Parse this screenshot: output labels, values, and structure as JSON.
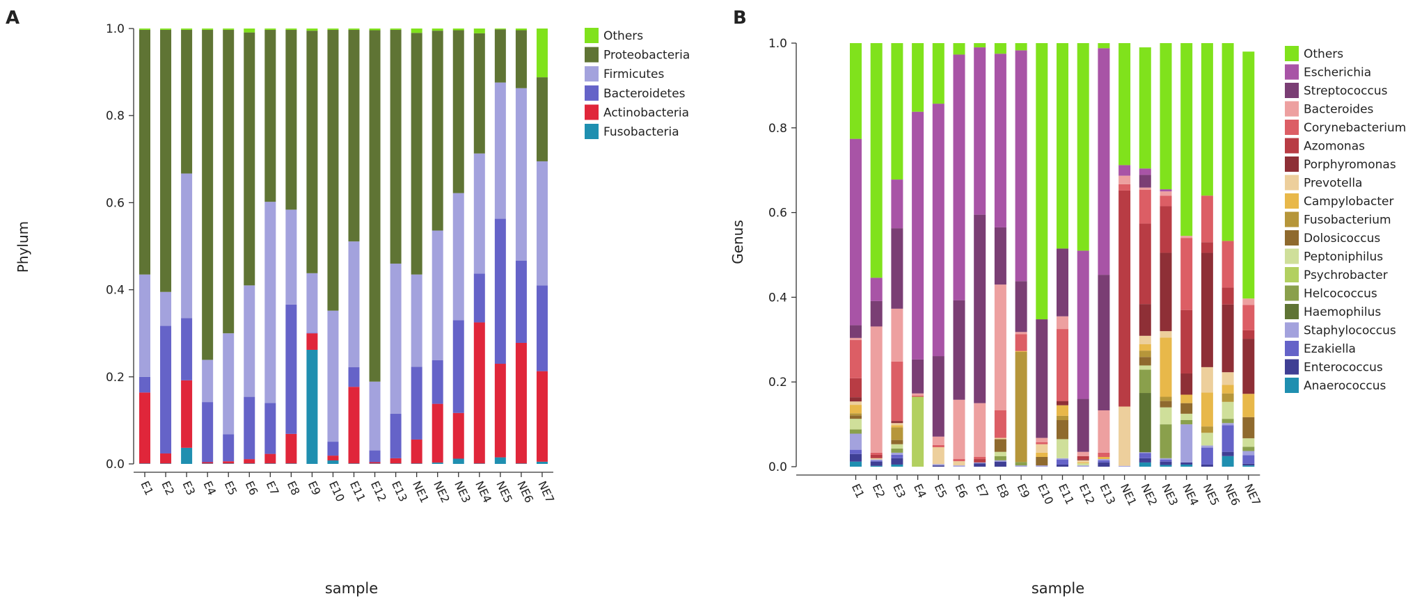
{
  "panels": [
    {
      "label": "A",
      "chart_data": {
        "type": "bar",
        "stacked": true,
        "title": "",
        "xlabel": "sample",
        "ylabel": "Phylum",
        "ylim": [
          0,
          1.0
        ],
        "yticks": [
          "0.0",
          "0.2",
          "0.4",
          "0.6",
          "0.8",
          "1.0"
        ],
        "categories": [
          "E1",
          "E2",
          "E3",
          "E4",
          "E5",
          "E6",
          "E7",
          "E8",
          "E9",
          "E10",
          "E11",
          "E12",
          "E13",
          "NE1",
          "NE2",
          "NE3",
          "NE4",
          "NE5",
          "NE6",
          "NE7"
        ],
        "legend_position": "top-right",
        "series": [
          {
            "name": "Fusobacteria",
            "color": "#1f8fb0",
            "values": [
              0.001,
              0.001,
              0.037,
              0.001,
              0.001,
              0.001,
              0.001,
              0.001,
              0.262,
              0.008,
              0.001,
              0.001,
              0.001,
              0.001,
              0.003,
              0.012,
              0.001,
              0.015,
              0.001,
              0.005
            ]
          },
          {
            "name": "Actinobacteria",
            "color": "#e0263a",
            "values": [
              0.163,
              0.023,
              0.155,
              0.003,
              0.005,
              0.01,
              0.022,
              0.068,
              0.038,
              0.011,
              0.176,
              0.003,
              0.012,
              0.055,
              0.135,
              0.105,
              0.324,
              0.215,
              0.277,
              0.208
            ]
          },
          {
            "name": "Bacteroidetes",
            "color": "#6563c8",
            "values": [
              0.036,
              0.293,
              0.143,
              0.138,
              0.062,
              0.143,
              0.117,
              0.297,
              0.001,
              0.032,
              0.045,
              0.027,
              0.102,
              0.167,
              0.1,
              0.213,
              0.112,
              0.333,
              0.189,
              0.197
            ]
          },
          {
            "name": "Firmicutes",
            "color": "#a3a2dd",
            "values": [
              0.235,
              0.078,
              0.332,
              0.097,
              0.232,
              0.256,
              0.462,
              0.218,
              0.137,
              0.301,
              0.289,
              0.158,
              0.345,
              0.212,
              0.298,
              0.292,
              0.276,
              0.313,
              0.396,
              0.285
            ]
          },
          {
            "name": "Proteobacteria",
            "color": "#5f7434",
            "values": [
              0.562,
              0.602,
              0.33,
              0.758,
              0.697,
              0.581,
              0.395,
              0.413,
              0.557,
              0.645,
              0.486,
              0.807,
              0.537,
              0.555,
              0.459,
              0.374,
              0.276,
              0.122,
              0.133,
              0.193
            ]
          },
          {
            "name": "Others",
            "color": "#80e21c",
            "values": [
              0.003,
              0.003,
              0.003,
              0.003,
              0.003,
              0.009,
              0.003,
              0.003,
              0.005,
              0.003,
              0.003,
              0.004,
              0.003,
              0.01,
              0.005,
              0.004,
              0.011,
              0.002,
              0.004,
              0.112
            ]
          }
        ],
        "legend_order": [
          "Others",
          "Proteobacteria",
          "Firmicutes",
          "Bacteroidetes",
          "Actinobacteria",
          "Fusobacteria"
        ]
      }
    },
    {
      "label": "B",
      "chart_data": {
        "type": "bar",
        "stacked": true,
        "title": "",
        "xlabel": "sample",
        "ylabel": "Genus",
        "ylim": [
          0,
          1.0
        ],
        "yticks": [
          "0.0",
          "0.2",
          "0.4",
          "0.6",
          "0.8",
          "1.0"
        ],
        "categories": [
          "E1",
          "E2",
          "E3",
          "E4",
          "E5",
          "E6",
          "E7",
          "E8",
          "E9",
          "E10",
          "E11",
          "E12",
          "E13",
          "NE1",
          "NE2",
          "NE3",
          "NE4",
          "NE5",
          "NE6",
          "NE7"
        ],
        "legend_position": "top-right",
        "series": [
          {
            "name": "Anaerococcus",
            "color": "#1f8fb0",
            "values": [
              0.012,
              0.002,
              0.005,
              0,
              0,
              0,
              0,
              0,
              0,
              0,
              0,
              0,
              0,
              0,
              0.01,
              0.004,
              0.005,
              0,
              0.025,
              0.003
            ]
          },
          {
            "name": "Enterococcus",
            "color": "#3f3f94",
            "values": [
              0.018,
              0.01,
              0.015,
              0,
              0.003,
              0,
              0.008,
              0.012,
              0,
              0,
              0.005,
              0,
              0.01,
              0,
              0.01,
              0.008,
              0.005,
              0.005,
              0.01,
              0.004
            ]
          },
          {
            "name": "Ezakiella",
            "color": "#6563c8",
            "values": [
              0.01,
              0.002,
              0.008,
              0,
              0,
              0,
              0,
              0,
              0,
              0,
              0.012,
              0,
              0.005,
              0,
              0.012,
              0.005,
              0,
              0.04,
              0.063,
              0.02
            ]
          },
          {
            "name": "Staphylococcus",
            "color": "#a3a2dd",
            "values": [
              0.038,
              0.003,
              0.005,
              0,
              0.003,
              0.003,
              0.002,
              0.003,
              0.003,
              0.003,
              0.003,
              0.003,
              0.003,
              0.002,
              0.002,
              0.003,
              0.09,
              0.005,
              0.005,
              0.01
            ]
          },
          {
            "name": "Haemophilus",
            "color": "#5f7434",
            "values": [
              0,
              0,
              0,
              0,
              0,
              0,
              0,
              0,
              0,
              0,
              0,
              0,
              0,
              0,
              0.14,
              0,
              0,
              0,
              0,
              0
            ]
          },
          {
            "name": "Helcococcus",
            "color": "#8aa04c",
            "values": [
              0.01,
              0,
              0.01,
              0,
              0,
              0,
              0,
              0.01,
              0.008,
              0,
              0,
              0,
              0,
              0,
              0.055,
              0.08,
              0.01,
              0,
              0.01,
              0.01
            ]
          },
          {
            "name": "Psychrobacter",
            "color": "#b2d060",
            "values": [
              0,
              0,
              0,
              0.165,
              0,
              0,
              0,
              0,
              0,
              0,
              0,
              0,
              0,
              0,
              0,
              0,
              0,
              0,
              0,
              0
            ]
          },
          {
            "name": "Peptoniphilus",
            "color": "#cfdf9a",
            "values": [
              0.025,
              0,
              0.01,
              0,
              0,
              0,
              0,
              0.01,
              0,
              0,
              0.045,
              0.005,
              0,
              0,
              0.01,
              0.04,
              0.015,
              0.03,
              0.04,
              0.02
            ]
          },
          {
            "name": "Dolosicoccus",
            "color": "#8f6a2e",
            "values": [
              0.008,
              0,
              0.01,
              0,
              0,
              0,
              0,
              0.03,
              0,
              0.02,
              0.045,
              0,
              0,
              0,
              0.02,
              0.015,
              0.025,
              0,
              0,
              0.05
            ]
          },
          {
            "name": "Fusobacterium",
            "color": "#b6963a",
            "values": [
              0.005,
              0,
              0.03,
              0,
              0,
              0,
              0,
              0,
              0.26,
              0,
              0.01,
              0,
              0,
              0,
              0.015,
              0.01,
              0,
              0.015,
              0.02,
              0
            ]
          },
          {
            "name": "Campylobacter",
            "color": "#e8b84a",
            "values": [
              0.02,
              0,
              0.005,
              0,
              0,
              0,
              0,
              0,
              0.002,
              0.01,
              0.025,
              0.002,
              0.005,
              0,
              0.015,
              0.14,
              0.02,
              0.08,
              0.02,
              0.055
            ]
          },
          {
            "name": "Prevotella",
            "color": "#edcf9c",
            "values": [
              0.008,
              0.003,
              0.005,
              0,
              0.04,
              0.01,
              0,
              0.003,
              0,
              0.02,
              0,
              0.005,
              0,
              0.14,
              0.02,
              0.015,
              0,
              0.06,
              0.03,
              0
            ]
          },
          {
            "name": "Porphyromonas",
            "color": "#8e2f36",
            "values": [
              0.01,
              0,
              0.005,
              0,
              0,
              0,
              0,
              0,
              0,
              0,
              0.01,
              0.002,
              0,
              0,
              0.075,
              0.185,
              0.05,
              0.27,
              0.16,
              0.13
            ]
          },
          {
            "name": "Azomonas",
            "color": "#b83c44",
            "values": [
              0.045,
              0.008,
              0,
              0,
              0,
              0,
              0.008,
              0,
              0,
              0,
              0,
              0.008,
              0,
              0.51,
              0.19,
              0.11,
              0.15,
              0.025,
              0.04,
              0.02
            ]
          },
          {
            "name": "Corynebacterium",
            "color": "#dc5e65",
            "values": [
              0.09,
              0.005,
              0.14,
              0.003,
              0.005,
              0.005,
              0.005,
              0.065,
              0.04,
              0.005,
              0.17,
              0,
              0.01,
              0.015,
              0.08,
              0.025,
              0.17,
              0.11,
              0.11,
              0.06
            ]
          },
          {
            "name": "Bacteroides",
            "color": "#eda0a0",
            "values": [
              0.005,
              0.298,
              0.125,
              0.005,
              0.02,
              0.14,
              0.127,
              0.297,
              0.005,
              0.01,
              0.03,
              0.01,
              0.1,
              0.02,
              0.005,
              0.01,
              0.005,
              0,
              0,
              0.015
            ]
          },
          {
            "name": "Streptococcus",
            "color": "#7a3e74",
            "values": [
              0.03,
              0.06,
              0.19,
              0.08,
              0.19,
              0.235,
              0.445,
              0.135,
              0.12,
              0.28,
              0.16,
              0.125,
              0.32,
              0,
              0.03,
              0,
              0,
              0,
              0,
              0
            ]
          },
          {
            "name": "Escherichia",
            "color": "#a854a6",
            "values": [
              0.44,
              0.055,
              0.115,
              0.585,
              0.596,
              0.58,
              0.395,
              0.41,
              0.545,
              0,
              0,
              0.35,
              0.535,
              0.025,
              0.015,
              0.005,
              0,
              0,
              0,
              0
            ]
          },
          {
            "name": "Others",
            "color": "#80e21c",
            "values": [
              0.226,
              0.554,
              0.322,
              0.162,
              0.143,
              0.027,
              0.01,
              0.025,
              0.017,
              0.662,
              0.485,
              0.49,
              0.012,
              0.288,
              0.286,
              0.345,
              0.455,
              0.36,
              0.467,
              0.583
            ]
          }
        ],
        "legend_order": [
          "Others",
          "Escherichia",
          "Streptococcus",
          "Bacteroides",
          "Corynebacterium",
          "Azomonas",
          "Porphyromonas",
          "Prevotella",
          "Campylobacter",
          "Fusobacterium",
          "Dolosicoccus",
          "Peptoniphilus",
          "Psychrobacter",
          "Helcococcus",
          "Haemophilus",
          "Staphylococcus",
          "Ezakiella",
          "Enterococcus",
          "Anaerococcus"
        ]
      }
    }
  ]
}
